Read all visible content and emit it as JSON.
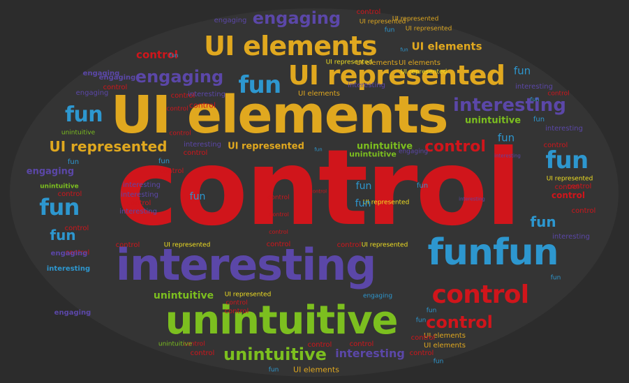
{
  "palette": {
    "background": "#2c2c2c",
    "ellipse": "#343434",
    "red": "#d0151b",
    "gold": "#e0a81f",
    "blue": "#2d97cf",
    "purple": "#5b47a8",
    "green": "#7cbf1f",
    "yellow": "#f1e022"
  },
  "words": [
    {
      "text": "control",
      "color": "red"
    },
    {
      "text": "UI elements",
      "color": "gold"
    },
    {
      "text": "interesting",
      "color": "purple"
    },
    {
      "text": "unintuitive",
      "color": "green"
    },
    {
      "text": "funfun",
      "color": "blue"
    },
    {
      "text": "UI represented",
      "color": "gold"
    },
    {
      "text": "UI elements",
      "color": "gold"
    },
    {
      "text": "control",
      "color": "red"
    },
    {
      "text": "control",
      "color": "red"
    },
    {
      "text": "fun",
      "color": "blue"
    },
    {
      "text": "interesting",
      "color": "purple"
    },
    {
      "text": "fun",
      "color": "blue"
    },
    {
      "text": "engaging",
      "color": "purple"
    },
    {
      "text": "engaging",
      "color": "purple"
    },
    {
      "text": "fun",
      "color": "blue"
    },
    {
      "text": "fun",
      "color": "blue"
    },
    {
      "text": "UI represented",
      "color": "gold"
    },
    {
      "text": "control",
      "color": "red"
    },
    {
      "text": "unintuitive",
      "color": "green"
    },
    {
      "text": "interesting",
      "color": "purple"
    },
    {
      "text": "control",
      "color": "red"
    },
    {
      "text": "UI elements",
      "color": "gold"
    },
    {
      "text": "control",
      "color": "red"
    },
    {
      "text": "fun",
      "color": "blue"
    },
    {
      "text": "fun",
      "color": "blue"
    },
    {
      "text": "fun",
      "color": "blue"
    },
    {
      "text": "fun",
      "color": "blue"
    },
    {
      "text": "unintuitive",
      "color": "green"
    },
    {
      "text": "unintuitive",
      "color": "green"
    },
    {
      "text": "UI represented",
      "color": "gold"
    },
    {
      "text": "unintuitive",
      "color": "green"
    },
    {
      "text": "interesting",
      "color": "purple"
    },
    {
      "text": "unintuitive",
      "color": "green"
    },
    {
      "text": "engaging",
      "color": "purple"
    },
    {
      "text": "engaging",
      "color": "purple"
    },
    {
      "text": "control",
      "color": "red"
    },
    {
      "text": "engaging",
      "color": "purple"
    },
    {
      "text": "engaging",
      "color": "purple"
    },
    {
      "text": "control",
      "color": "red"
    },
    {
      "text": "control",
      "color": "red"
    },
    {
      "text": "control",
      "color": "red"
    },
    {
      "text": "control",
      "color": "red"
    },
    {
      "text": "control",
      "color": "red"
    },
    {
      "text": "control",
      "color": "red"
    },
    {
      "text": "control",
      "color": "red"
    },
    {
      "text": "UI elements",
      "color": "gold"
    },
    {
      "text": "UI elements",
      "color": "gold"
    },
    {
      "text": "UI elements",
      "color": "gold"
    },
    {
      "text": "UI elements",
      "color": "gold"
    },
    {
      "text": "UI elements",
      "color": "gold"
    },
    {
      "text": "UI elements",
      "color": "gold"
    },
    {
      "text": "UI represented",
      "color": "gold"
    },
    {
      "text": "UI represented",
      "color": "gold"
    },
    {
      "text": "UI represented",
      "color": "gold"
    },
    {
      "text": "UI represented",
      "color": "yellow"
    },
    {
      "text": "UI represented",
      "color": "yellow"
    },
    {
      "text": "UI represented",
      "color": "yellow"
    },
    {
      "text": "UI represented",
      "color": "yellow"
    },
    {
      "text": "UI represented",
      "color": "yellow"
    },
    {
      "text": "UI represented",
      "color": "yellow"
    },
    {
      "text": "UI represented",
      "color": "yellow"
    },
    {
      "text": "interesting",
      "color": "purple"
    },
    {
      "text": "interesting",
      "color": "purple"
    },
    {
      "text": "interesting",
      "color": "purple"
    },
    {
      "text": "interesting",
      "color": "purple"
    },
    {
      "text": "interesting",
      "color": "purple"
    },
    {
      "text": "interesting",
      "color": "purple"
    },
    {
      "text": "interesting",
      "color": "purple"
    },
    {
      "text": "interesting",
      "color": "purple"
    },
    {
      "text": "interesting",
      "color": "purple"
    },
    {
      "text": "interesting",
      "color": "purple"
    },
    {
      "text": "unintuitive",
      "color": "green"
    },
    {
      "text": "unintuitive",
      "color": "green"
    },
    {
      "text": "unintuitive",
      "color": "green"
    },
    {
      "text": "fun",
      "color": "blue"
    },
    {
      "text": "fun",
      "color": "blue"
    },
    {
      "text": "fun",
      "color": "blue"
    },
    {
      "text": "fun",
      "color": "blue"
    },
    {
      "text": "fun",
      "color": "blue"
    },
    {
      "text": "fun",
      "color": "blue"
    },
    {
      "text": "fun",
      "color": "blue"
    },
    {
      "text": "fun",
      "color": "blue"
    },
    {
      "text": "fun",
      "color": "blue"
    },
    {
      "text": "fun",
      "color": "blue"
    },
    {
      "text": "fun",
      "color": "blue"
    },
    {
      "text": "fun",
      "color": "blue"
    },
    {
      "text": "fun",
      "color": "blue"
    },
    {
      "text": "fun",
      "color": "blue"
    },
    {
      "text": "fun",
      "color": "blue"
    },
    {
      "text": "fun",
      "color": "blue"
    },
    {
      "text": "fun",
      "color": "blue"
    },
    {
      "text": "control",
      "color": "red"
    },
    {
      "text": "control",
      "color": "red"
    },
    {
      "text": "control",
      "color": "red"
    },
    {
      "text": "control",
      "color": "red"
    },
    {
      "text": "control",
      "color": "red"
    },
    {
      "text": "control",
      "color": "red"
    },
    {
      "text": "control",
      "color": "red"
    },
    {
      "text": "control",
      "color": "red"
    },
    {
      "text": "control",
      "color": "red"
    },
    {
      "text": "control",
      "color": "red"
    },
    {
      "text": "control",
      "color": "red"
    },
    {
      "text": "control",
      "color": "red"
    },
    {
      "text": "control",
      "color": "red"
    },
    {
      "text": "control",
      "color": "red"
    },
    {
      "text": "control",
      "color": "red"
    },
    {
      "text": "control",
      "color": "red"
    },
    {
      "text": "control",
      "color": "red"
    },
    {
      "text": "control",
      "color": "red"
    },
    {
      "text": "control",
      "color": "red"
    },
    {
      "text": "control",
      "color": "red"
    },
    {
      "text": "control",
      "color": "red"
    },
    {
      "text": "control",
      "color": "red"
    },
    {
      "text": "control",
      "color": "red"
    },
    {
      "text": "control",
      "color": "red"
    },
    {
      "text": "engaging",
      "color": "purple"
    },
    {
      "text": "engaging",
      "color": "purple"
    },
    {
      "text": "engaging",
      "color": "purple"
    },
    {
      "text": "engaging",
      "color": "purple"
    },
    {
      "text": "interesting",
      "color": "blue"
    },
    {
      "text": "engaging",
      "color": "blue"
    }
  ]
}
